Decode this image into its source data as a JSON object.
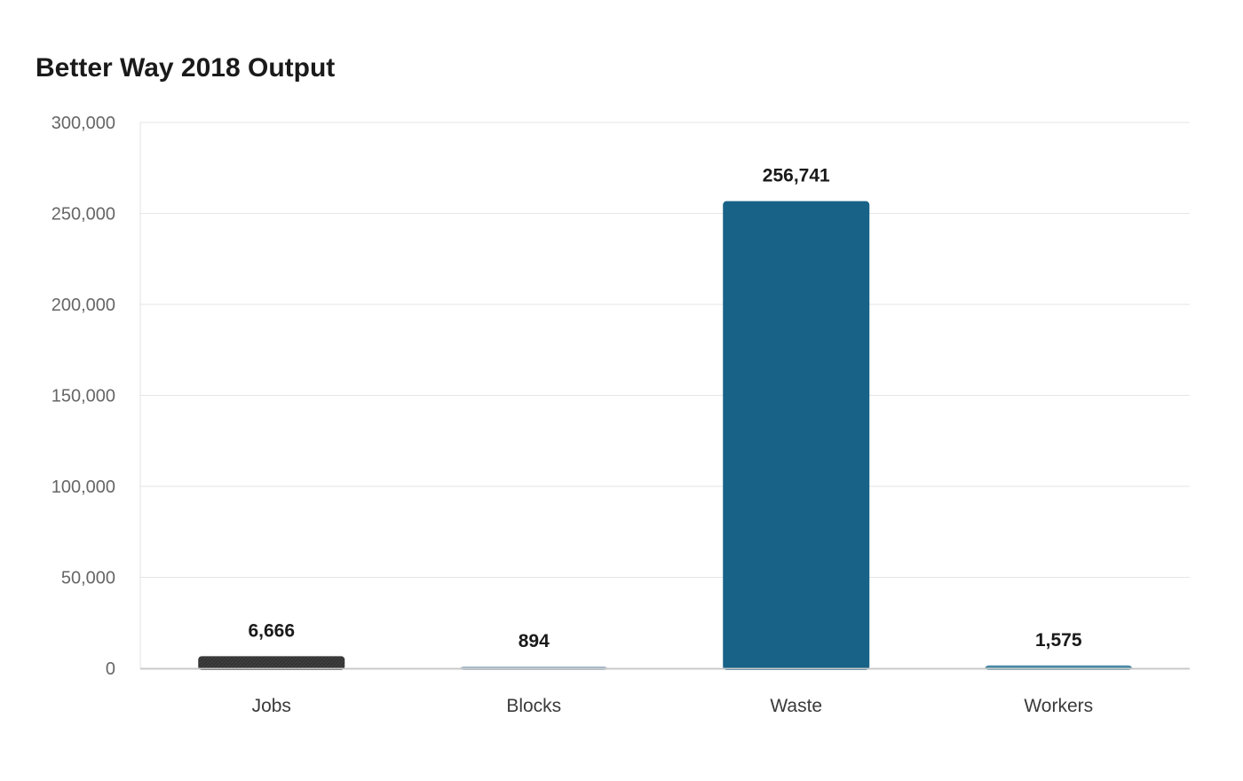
{
  "chart_data": {
    "type": "bar",
    "title": "Better Way 2018 Output",
    "xlabel": "",
    "ylabel": "",
    "categories": [
      "Jobs",
      "Blocks",
      "Waste",
      "Workers"
    ],
    "values": [
      6666,
      894,
      256741,
      1575
    ],
    "value_labels": [
      "6,666",
      "894",
      "256,741",
      "1,575"
    ],
    "colors": [
      "#333333",
      "#9fb5c8",
      "#186288",
      "#4a8aa6"
    ],
    "ylim": [
      0,
      300000
    ],
    "yticks": [
      0,
      50000,
      100000,
      150000,
      200000,
      250000,
      300000
    ],
    "ytick_labels": [
      "0",
      "50,000",
      "100,000",
      "150,000",
      "200,000",
      "250,000",
      "300,000"
    ],
    "grid": true,
    "legend": "none"
  }
}
